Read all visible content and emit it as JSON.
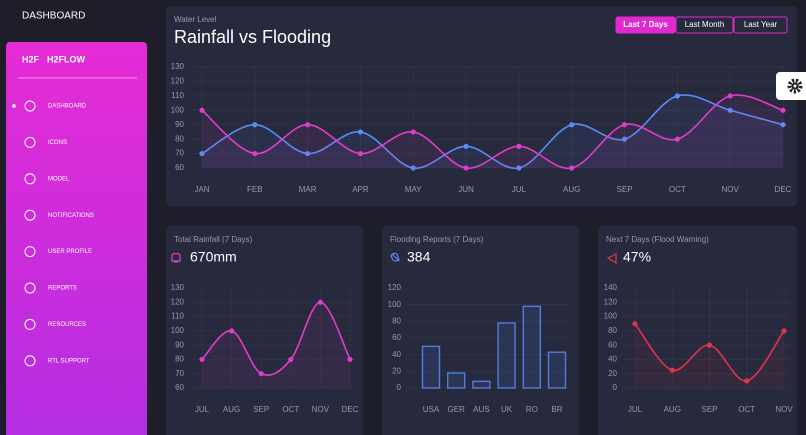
{
  "sidebar": {
    "header": "DASHBOARD",
    "logo": "H2F",
    "brand": "H2FLOW",
    "menu": [
      "DASHBOARD",
      "ICONS",
      "MODEL",
      "NOTIFICATIONS",
      "USER PROFILE",
      "REPORTS",
      "RESOURCES",
      "RTL SUPPORT"
    ]
  },
  "range_buttons": [
    "Last 7 Days",
    "Last Month",
    "Last Year"
  ],
  "chart_data": [
    {
      "type": "line",
      "subtitle": "Water Level",
      "title": "Rainfall vs Flooding",
      "categories": [
        "JAN",
        "FEB",
        "MAR",
        "APR",
        "MAY",
        "JUN",
        "JUL",
        "AUG",
        "SEP",
        "OCT",
        "NOV",
        "DEC"
      ],
      "series": [
        {
          "color": "#5b8cf5",
          "values": [
            70,
            90,
            70,
            85,
            60,
            75,
            60,
            90,
            80,
            110,
            100,
            90
          ]
        },
        {
          "color": "#e03ec8",
          "values": [
            100,
            70,
            90,
            70,
            85,
            60,
            75,
            60,
            90,
            80,
            110,
            100
          ]
        }
      ],
      "ylim": [
        60,
        130
      ],
      "yticks": [
        60,
        70,
        80,
        90,
        100,
        110,
        120,
        130
      ],
      "grid": true
    },
    {
      "type": "line",
      "subtitle": "Total Rainfall (7 Days)",
      "stat": "670mm",
      "categories": [
        "JUL",
        "AUG",
        "SEP",
        "OCT",
        "NOV",
        "DEC"
      ],
      "series": [
        {
          "color": "#e03ec8",
          "values": [
            80,
            100,
            70,
            80,
            120,
            80
          ]
        }
      ],
      "ylim": [
        60,
        130
      ],
      "yticks": [
        60,
        70,
        80,
        90,
        100,
        110,
        120,
        130
      ],
      "grid": true
    },
    {
      "type": "bar",
      "subtitle": "Flooding Reports (7 Days)",
      "stat": "384",
      "categories": [
        "USA",
        "GER",
        "AUS",
        "UK",
        "RO",
        "BR"
      ],
      "values": [
        50,
        18,
        8,
        78,
        98,
        43
      ],
      "color": "#4f7de0",
      "ylim": [
        0,
        120
      ],
      "yticks": [
        0,
        20,
        40,
        60,
        80,
        100,
        120
      ],
      "grid": true
    },
    {
      "type": "line",
      "subtitle": "Next 7 Days (Flood Warning)",
      "stat": "47%",
      "categories": [
        "JUL",
        "AUG",
        "SEP",
        "OCT",
        "NOV"
      ],
      "series": [
        {
          "color": "#e0334f",
          "values": [
            90,
            25,
            60,
            10,
            80
          ]
        }
      ],
      "ylim": [
        0,
        140
      ],
      "yticks": [
        0,
        20,
        40,
        60,
        80,
        100,
        120,
        140
      ],
      "grid": true
    }
  ]
}
